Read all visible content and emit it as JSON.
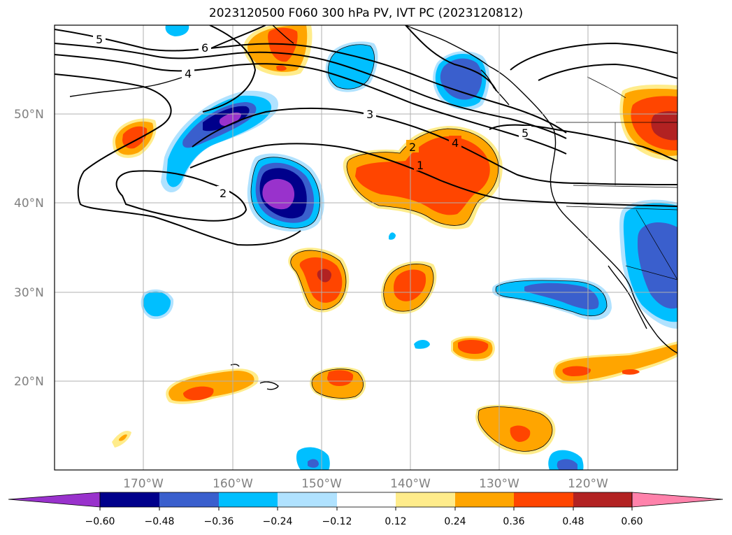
{
  "title": "2023120500 F060 300 hPa PV, IVT PC (2023120812)",
  "colors": {
    "n060": "#9932cc",
    "n048": "#00008b",
    "n036": "#3a5fcd",
    "n024": "#00bfff",
    "n012": "#b0e2ff",
    "neutral": "#ffffff",
    "p012": "#ffec8b",
    "p024": "#ffa500",
    "p036": "#ff4500",
    "p048": "#b22222",
    "p060": "#ff82ab"
  },
  "map": {
    "lon_labels": [
      "170°W",
      "160°W",
      "150°W",
      "140°W",
      "130°W",
      "120°W"
    ],
    "lat_labels": [
      "50°N",
      "40°N",
      "30°N",
      "20°N"
    ],
    "contour_labels": [
      "5",
      "6",
      "4",
      "3",
      "2",
      "4",
      "1",
      "5",
      "2"
    ]
  },
  "colorbar": {
    "tick_labels": [
      "−0.60",
      "−0.48",
      "−0.36",
      "−0.24",
      "−0.12",
      "0.12",
      "0.24",
      "0.36",
      "0.48",
      "0.60"
    ]
  }
}
